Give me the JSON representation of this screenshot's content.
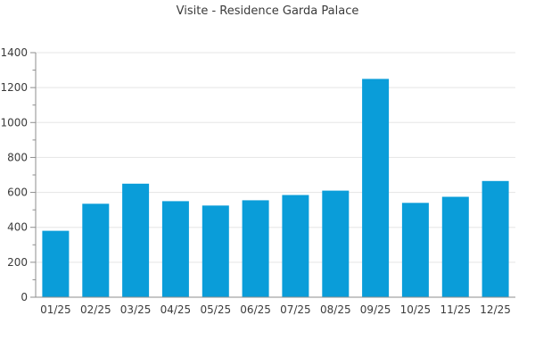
{
  "chart_data": {
    "type": "bar",
    "title": "Visite - Residence Garda Palace",
    "categories": [
      "01/25",
      "02/25",
      "03/25",
      "04/25",
      "05/25",
      "06/25",
      "07/25",
      "08/25",
      "09/25",
      "10/25",
      "11/25",
      "12/25"
    ],
    "values": [
      380,
      535,
      650,
      550,
      525,
      555,
      585,
      610,
      1250,
      540,
      575,
      665
    ],
    "xlabel": "",
    "ylabel": "",
    "ylim": [
      0,
      1400
    ],
    "y_ticks": [
      0,
      200,
      400,
      600,
      800,
      1000,
      1200,
      1400
    ],
    "y_minor_step": 100,
    "grid": "horizontal-major-only",
    "legend": "none",
    "colors": {
      "bar": "#0a9dd9",
      "grid": "#e5e5e5",
      "axis": "#8e8e8e",
      "tick": "#8e8e8e",
      "text": "#3b3b3b"
    }
  }
}
